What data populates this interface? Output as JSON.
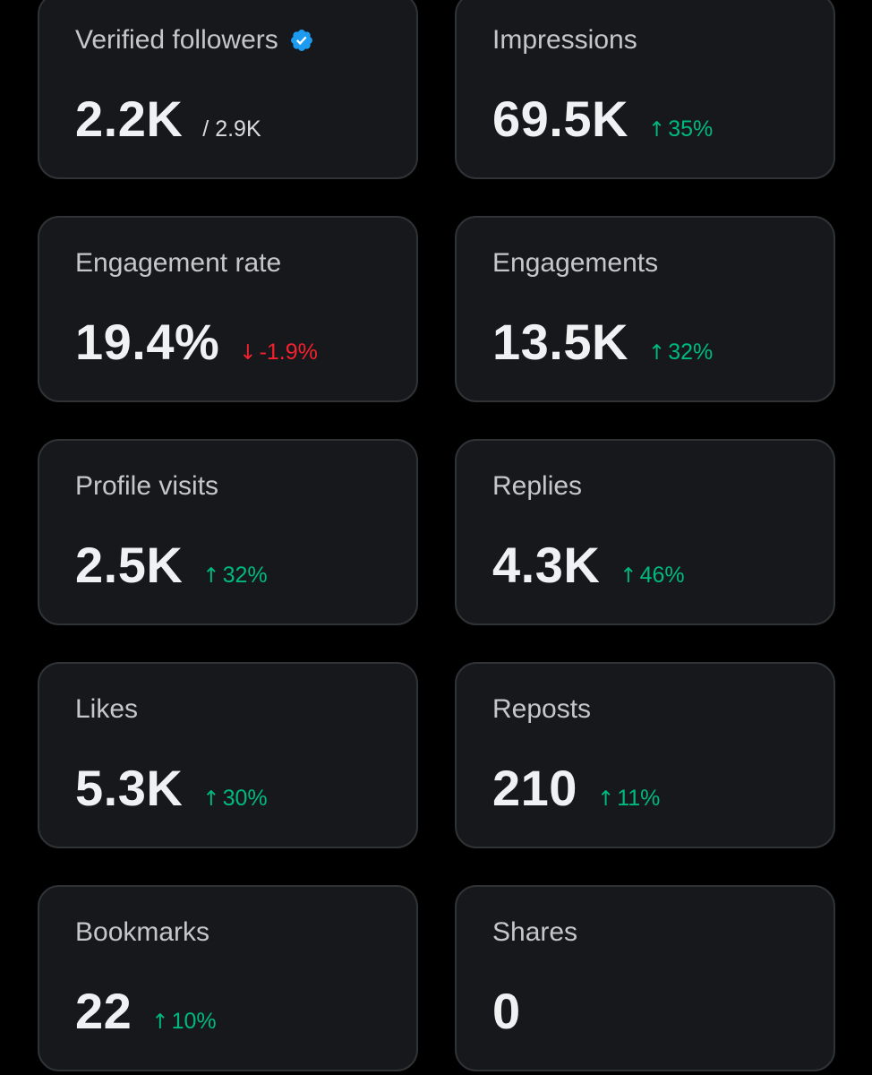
{
  "colors": {
    "page_bg": "#000000",
    "card_bg": "#16181c",
    "card_border": "#2f3336",
    "positive": "#00ba7c",
    "negative": "#f4212e",
    "verified_badge": "#1d9bf0"
  },
  "cards": [
    {
      "title": "Verified followers",
      "value": "2.2K",
      "sub": "/ 2.9K",
      "icon": "verified-badge-icon"
    },
    {
      "title": "Impressions",
      "value": "69.5K",
      "delta": "35%",
      "direction": "up"
    },
    {
      "title": "Engagement rate",
      "value": "19.4%",
      "delta": "-1.9%",
      "direction": "down"
    },
    {
      "title": "Engagements",
      "value": "13.5K",
      "delta": "32%",
      "direction": "up"
    },
    {
      "title": "Profile visits",
      "value": "2.5K",
      "delta": "32%",
      "direction": "up"
    },
    {
      "title": "Replies",
      "value": "4.3K",
      "delta": "46%",
      "direction": "up"
    },
    {
      "title": "Likes",
      "value": "5.3K",
      "delta": "30%",
      "direction": "up"
    },
    {
      "title": "Reposts",
      "value": "210",
      "delta": "11%",
      "direction": "up"
    },
    {
      "title": "Bookmarks",
      "value": "22",
      "delta": "10%",
      "direction": "up"
    },
    {
      "title": "Shares",
      "value": "0"
    }
  ]
}
